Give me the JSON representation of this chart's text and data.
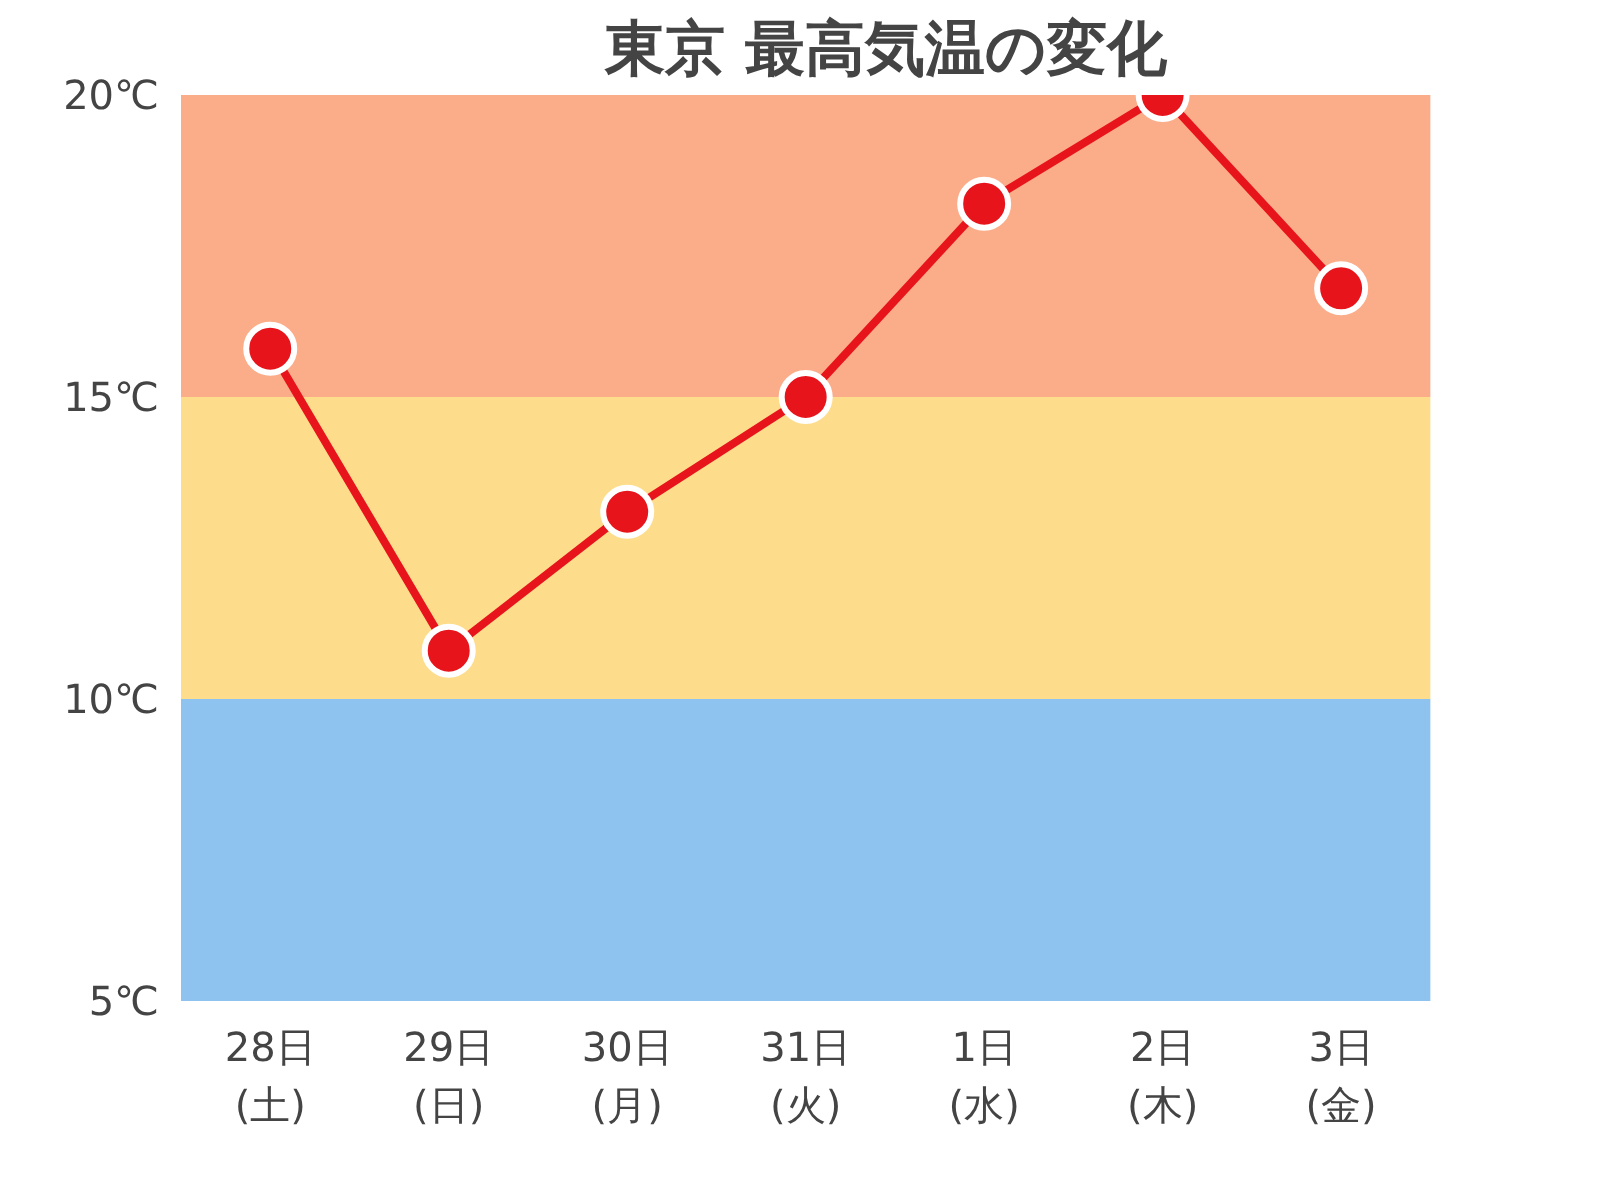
{
  "chart_data": {
    "type": "line",
    "title": "東京 最高気温の変化",
    "categories": [
      "28日\n(土)",
      "29日\n(日)",
      "30日\n(月)",
      "31日\n(火)",
      "1日\n(水)",
      "2日\n(木)",
      "3日\n(金)"
    ],
    "series": [
      {
        "color": "#e8141c",
        "values": [
          15.8,
          10.8,
          13.1,
          15.0,
          18.2,
          20.0,
          16.8
        ]
      }
    ],
    "ylim": [
      5,
      20
    ],
    "yticks": [
      {
        "value": 5,
        "label": "5℃"
      },
      {
        "value": 10,
        "label": "10℃"
      },
      {
        "value": 15,
        "label": "15℃"
      },
      {
        "value": 20,
        "label": "20℃"
      }
    ],
    "bands": [
      {
        "axis": "y",
        "from": 5,
        "to": 10,
        "color": "#8fc3ef"
      },
      {
        "axis": "y",
        "from": 10,
        "to": 15,
        "color": "#fddd8c"
      },
      {
        "axis": "y",
        "from": 15,
        "to": 20,
        "color": "#fbad8a"
      }
    ],
    "marker": "circle",
    "line_style": "solid"
  }
}
